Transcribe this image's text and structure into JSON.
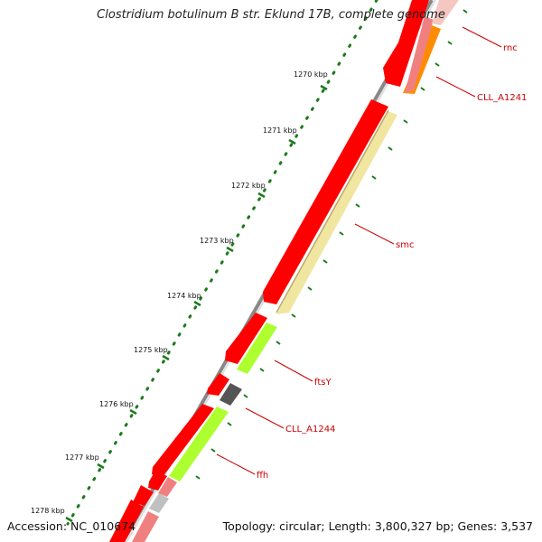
{
  "title": "Clostridium botulinum B str. Eklund 17B, complete genome",
  "footer": {
    "accession": "Accession: NC_010674",
    "summary": "Topology: circular; Length: 3,800,327 bp; Genes: 3,537"
  },
  "ticks": [
    {
      "label": "1270 kbp"
    },
    {
      "label": "1271 kbp"
    },
    {
      "label": "1272 kbp"
    },
    {
      "label": "1273 kbp"
    },
    {
      "label": "1274 kbp"
    },
    {
      "label": "1275 kbp"
    },
    {
      "label": "1276 kbp"
    },
    {
      "label": "1277 kbp"
    },
    {
      "label": "1278 kbp"
    }
  ],
  "gene_labels": [
    {
      "name": "rnc"
    },
    {
      "name": "CLL_A1241"
    },
    {
      "name": "smc"
    },
    {
      "name": "ftsY"
    },
    {
      "name": "CLL_A1244"
    },
    {
      "name": "ffh"
    }
  ],
  "colors": {
    "backbone": "#888888",
    "gene_strand": "#ff0000",
    "cds_light_red": "#f08080",
    "pale_yellow": "#f0e6a0",
    "lime": "#adff2f",
    "orange": "#ff8c00",
    "dark_gray": "#555555",
    "light_gray": "#c0c0c0",
    "tick_green": "#1a7a1a",
    "label_red": "#cc0000"
  }
}
